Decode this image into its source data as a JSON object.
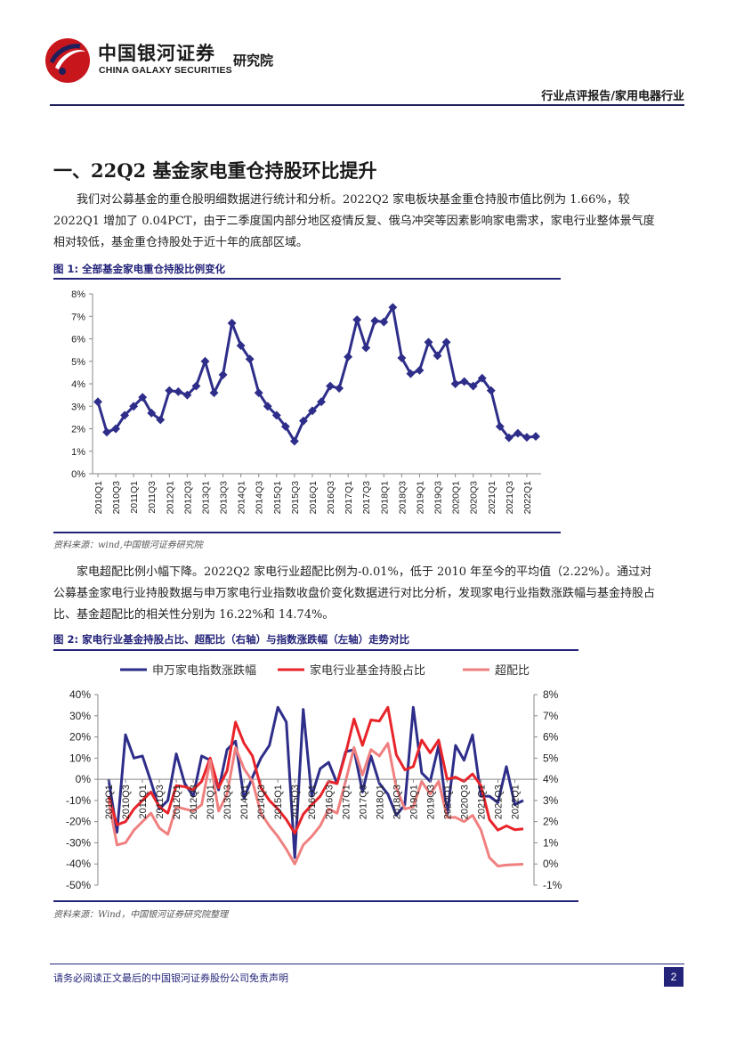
{
  "header": {
    "brand_cn": "中国银河证券",
    "brand_en": "CHINA GALAXY SECURITIES",
    "institute": "研究院",
    "category": "行业点评报告/家用电器行业"
  },
  "section": {
    "title": "一、22Q2 基金家电重仓持股环比提升",
    "para1": "我们对公募基金的重仓股明细数据进行统计和分析。2022Q2 家电板块基金重仓持股市值比例为 1.66%，较 2022Q1 增加了 0.04PCT，由于二季度国内部分地区疫情反复、俄乌冲突等因素影响家电需求，家电行业整体景气度相对较低，基金重仓持股处于近十年的底部区域。",
    "para2": "家电超配比例小幅下降。2022Q2 家电行业超配比例为-0.01%，低于 2010 年至今的平均值（2.22%）。通过对公募基金家电行业持股数据与申万家电行业指数收盘价变化数据进行对比分析，发现家电行业指数涨跌幅与基金持股占比、基金超配比的相关性分别为 16.22%和 14.74%。"
  },
  "figure1": {
    "title": "图 1:  全部基金家电重仓持股比例变化",
    "source": "资料来源：wind,中国银河证券研究院"
  },
  "figure2": {
    "title": "图 2:  家电行业基金持股占比、超配比（右轴）与指数涨跌幅（左轴）走势对比",
    "source": "资料来源：Wind，中国银河证券研究院整理"
  },
  "footer": {
    "disclaimer": "请务必阅读正文最后的中国银河证券股份公司免责声明",
    "page": "2"
  },
  "chart_data": [
    {
      "type": "line",
      "x": [
        "2010Q1",
        "2010Q2",
        "2010Q3",
        "2010Q4",
        "2011Q1",
        "2011Q2",
        "2011Q3",
        "2011Q4",
        "2012Q1",
        "2012Q2",
        "2012Q3",
        "2012Q4",
        "2013Q1",
        "2013Q2",
        "2013Q3",
        "2013Q4",
        "2014Q1",
        "2014Q2",
        "2014Q3",
        "2014Q4",
        "2015Q1",
        "2015Q2",
        "2015Q3",
        "2015Q4",
        "2016Q1",
        "2016Q2",
        "2016Q3",
        "2016Q4",
        "2017Q1",
        "2017Q2",
        "2017Q3",
        "2017Q4",
        "2018Q1",
        "2018Q2",
        "2018Q3",
        "2018Q4",
        "2019Q1",
        "2019Q2",
        "2019Q3",
        "2019Q4",
        "2020Q1",
        "2020Q2",
        "2020Q3",
        "2020Q4",
        "2021Q1",
        "2021Q2",
        "2021Q3",
        "2021Q4",
        "2022Q1",
        "2022Q2"
      ],
      "xticks": [
        "2010Q1",
        "2010Q3",
        "2011Q1",
        "2011Q3",
        "2012Q1",
        "2012Q3",
        "2013Q1",
        "2013Q3",
        "2014Q1",
        "2014Q3",
        "2015Q1",
        "2015Q3",
        "2016Q1",
        "2016Q3",
        "2017Q1",
        "2017Q3",
        "2018Q1",
        "2018Q3",
        "2019Q1",
        "2019Q3",
        "2020Q1",
        "2020Q3",
        "2021Q1",
        "2021Q3",
        "2022Q1"
      ],
      "series": [
        {
          "values": [
            3.2,
            1.85,
            2.0,
            2.6,
            3.0,
            3.4,
            2.7,
            2.4,
            3.7,
            3.65,
            3.5,
            3.9,
            5.0,
            3.6,
            4.4,
            6.7,
            5.7,
            5.1,
            3.6,
            3.0,
            2.6,
            2.1,
            1.45,
            2.35,
            2.8,
            3.2,
            3.9,
            3.8,
            5.2,
            6.85,
            5.6,
            6.8,
            6.75,
            7.4,
            5.15,
            4.45,
            4.6,
            5.85,
            5.25,
            5.85,
            4.0,
            4.1,
            3.9,
            4.25,
            3.7,
            2.1,
            1.6,
            1.8,
            1.62,
            1.66
          ],
          "color": "#2e2e8a"
        }
      ],
      "yticks": [
        "0%",
        "1%",
        "2%",
        "3%",
        "4%",
        "5%",
        "6%",
        "7%",
        "8%"
      ],
      "ylim": [
        0,
        8
      ]
    },
    {
      "type": "line",
      "x": [
        "2010Q1",
        "2010Q2",
        "2010Q3",
        "2010Q4",
        "2011Q1",
        "2011Q2",
        "2011Q3",
        "2011Q4",
        "2012Q1",
        "2012Q2",
        "2012Q3",
        "2012Q4",
        "2013Q1",
        "2013Q2",
        "2013Q3",
        "2013Q4",
        "2014Q1",
        "2014Q2",
        "2014Q3",
        "2014Q4",
        "2015Q1",
        "2015Q2",
        "2015Q3",
        "2015Q4",
        "2016Q1",
        "2016Q2",
        "2016Q3",
        "2016Q4",
        "2017Q1",
        "2017Q2",
        "2017Q3",
        "2017Q4",
        "2018Q1",
        "2018Q2",
        "2018Q3",
        "2018Q4",
        "2019Q1",
        "2019Q2",
        "2019Q3",
        "2019Q4",
        "2020Q1",
        "2020Q2",
        "2020Q3",
        "2020Q4",
        "2021Q1",
        "2021Q2",
        "2021Q3",
        "2021Q4",
        "2022Q1",
        "2022Q2"
      ],
      "xticks": [
        "2010Q1",
        "2010Q3",
        "2011Q1",
        "2011Q3",
        "2012Q1",
        "2012Q3",
        "2013Q1",
        "2013Q3",
        "2014Q1",
        "2014Q3",
        "2015Q1",
        "2015Q3",
        "2016Q1",
        "2016Q3",
        "2017Q1",
        "2017Q3",
        "2018Q1",
        "2018Q3",
        "2019Q1",
        "2019Q3",
        "2020Q1",
        "2020Q3",
        "2021Q1",
        "2021Q3",
        "2022Q1"
      ],
      "series": [
        {
          "name": "申万家电指数涨跌幅",
          "axis": "left",
          "color": "#2e2e8a",
          "values": [
            0,
            -25,
            21,
            10,
            11,
            -1,
            -14,
            -10,
            12,
            -2,
            -8,
            11,
            9,
            -5,
            14,
            18,
            -9,
            1,
            10,
            16,
            34,
            27,
            -37,
            33,
            -8,
            5,
            8,
            -2,
            13,
            14,
            -6,
            11,
            -2,
            -7,
            -17,
            -12,
            34,
            3,
            -1,
            16,
            -17,
            16,
            9,
            21,
            -8,
            -8,
            -11,
            6,
            -12,
            -10
          ],
          "note": "left axis %"
        },
        {
          "name": "家电行业基金持股占比",
          "axis": "right",
          "color": "#e8242a",
          "values": [
            3.2,
            1.85,
            2.0,
            2.6,
            3.0,
            3.4,
            2.7,
            2.4,
            3.7,
            3.65,
            3.5,
            3.9,
            5.0,
            3.6,
            4.4,
            6.7,
            5.7,
            5.1,
            3.6,
            3.0,
            2.6,
            2.1,
            1.45,
            2.35,
            2.8,
            3.2,
            3.9,
            3.8,
            5.2,
            6.85,
            5.6,
            6.8,
            6.75,
            7.4,
            5.15,
            4.45,
            4.6,
            5.85,
            5.25,
            5.85,
            4.0,
            4.1,
            3.9,
            4.25,
            3.7,
            2.1,
            1.6,
            1.8,
            1.62,
            1.66
          ]
        },
        {
          "name": "超配比",
          "axis": "right",
          "color": "#f08080",
          "values": [
            3.0,
            0.9,
            1.0,
            1.6,
            2.0,
            2.4,
            1.7,
            1.4,
            2.7,
            2.6,
            2.5,
            2.8,
            4.9,
            2.5,
            3.3,
            5.5,
            4.5,
            3.9,
            2.4,
            1.8,
            1.3,
            0.7,
            0.0,
            0.9,
            1.3,
            1.8,
            2.6,
            2.4,
            3.9,
            5.5,
            4.2,
            5.4,
            5.1,
            5.7,
            3.6,
            2.6,
            2.7,
            3.9,
            3.3,
            3.9,
            2.2,
            2.2,
            2.0,
            2.3,
            1.6,
            0.3,
            -0.1,
            -0.05,
            -0.03,
            -0.01
          ]
        }
      ],
      "yticks_left": [
        "-50%",
        "-40%",
        "-30%",
        "-20%",
        "-10%",
        "0%",
        "10%",
        "20%",
        "30%",
        "40%"
      ],
      "yticks_right": [
        "-1%",
        "0%",
        "1%",
        "2%",
        "3%",
        "4%",
        "5%",
        "6%",
        "7%",
        "8%"
      ],
      "ylim_left": [
        -50,
        40
      ],
      "ylim_right": [
        -1,
        8
      ],
      "legend": "top"
    }
  ]
}
